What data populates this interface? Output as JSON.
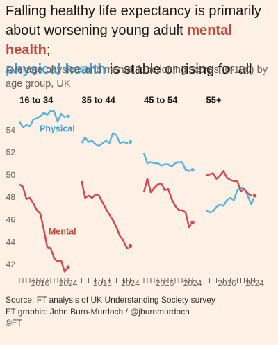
{
  "header": {
    "title": [
      "Falling healthy life expectancy is primarily about worsening young adult ",
      "mental health",
      "; ",
      "physical health",
      " is stable or rising for all"
    ],
    "subtitle": "Average physical and mental functioning scores (0-100) by age group, UK"
  },
  "chart_data": [
    {
      "type": "line",
      "title": "16 to 34",
      "x": [
        2010,
        2011,
        2012,
        2013,
        2014,
        2015,
        2016,
        2017,
        2018,
        2019,
        2020,
        2021,
        2022,
        2023,
        2024
      ],
      "series": [
        {
          "name": "Physical",
          "color": "#5ab4e0",
          "values": [
            54.8,
            54.3,
            54.5,
            54.4,
            55.0,
            55.1,
            55.3,
            55.6,
            55.4,
            55.8,
            55.7,
            54.8,
            55.5,
            55.2,
            55.3
          ]
        },
        {
          "name": "Mental",
          "color": "#d9484e",
          "values": [
            49.2,
            49.0,
            47.9,
            48.0,
            47.5,
            46.9,
            46.6,
            45.2,
            43.6,
            43.5,
            42.6,
            42.3,
            42.4,
            41.4,
            41.8
          ]
        }
      ],
      "xlim": [
        2010,
        2024
      ],
      "xticks": [
        2016,
        2024
      ],
      "xminorticks": [
        2010,
        2011,
        2012,
        2013,
        2014,
        2015,
        2016,
        2017,
        2018,
        2019,
        2020,
        2021,
        2022,
        2023,
        2024
      ],
      "ylim": [
        41,
        56
      ],
      "yticks": [
        42,
        44,
        46,
        48,
        50,
        52,
        54
      ]
    },
    {
      "type": "line",
      "title": "35 to 44",
      "x": [
        2010,
        2011,
        2012,
        2013,
        2014,
        2015,
        2016,
        2017,
        2018,
        2019,
        2020,
        2021,
        2022,
        2023,
        2024
      ],
      "series": [
        {
          "color": "#5ab4e0",
          "values": [
            52.9,
            53.4,
            53.0,
            53.1,
            52.8,
            52.6,
            52.9,
            53.1,
            52.9,
            53.8,
            53.6,
            52.9,
            53.0,
            52.9,
            53.0
          ]
        },
        {
          "color": "#d9484e",
          "values": [
            49.5,
            48.0,
            48.2,
            48.0,
            48.3,
            48.2,
            47.6,
            47.0,
            46.5,
            46.0,
            45.4,
            44.6,
            44.2,
            43.5,
            43.7
          ]
        }
      ],
      "xlim": [
        2010,
        2024
      ],
      "xticks": [
        2016,
        2024
      ],
      "xminorticks": [
        2010,
        2011,
        2012,
        2013,
        2014,
        2015,
        2016,
        2017,
        2018,
        2019,
        2020,
        2021,
        2022,
        2023,
        2024
      ],
      "ylim": [
        41,
        56
      ]
    },
    {
      "type": "line",
      "title": "45 to 54",
      "x": [
        2010,
        2011,
        2012,
        2013,
        2014,
        2015,
        2016,
        2017,
        2018,
        2019,
        2020,
        2021,
        2022,
        2023,
        2024
      ],
      "series": [
        {
          "color": "#5ab4e0",
          "values": [
            52.0,
            51.1,
            51.2,
            51.1,
            51.1,
            50.9,
            51.0,
            51.0,
            50.8,
            51.1,
            51.2,
            51.2,
            50.5,
            50.4,
            50.5
          ]
        },
        {
          "color": "#d9484e",
          "values": [
            48.5,
            49.7,
            48.5,
            48.9,
            49.2,
            49.3,
            48.7,
            48.8,
            47.9,
            47.3,
            46.9,
            46.9,
            46.7,
            45.4,
            45.8
          ]
        }
      ],
      "xlim": [
        2010,
        2024
      ],
      "xticks": [
        2016,
        2024
      ],
      "xminorticks": [
        2010,
        2011,
        2012,
        2013,
        2014,
        2015,
        2016,
        2017,
        2018,
        2019,
        2020,
        2021,
        2022,
        2023,
        2024
      ],
      "ylim": [
        41,
        56
      ]
    },
    {
      "type": "line",
      "title": "55+",
      "x": [
        2010,
        2011,
        2012,
        2013,
        2014,
        2015,
        2016,
        2017,
        2018,
        2019,
        2020,
        2021,
        2022,
        2023,
        2024
      ],
      "series": [
        {
          "color": "#5ab4e0",
          "values": [
            46.9,
            46.7,
            46.8,
            47.2,
            47.4,
            47.3,
            47.8,
            48.0,
            47.8,
            48.7,
            48.9,
            48.8,
            48.2,
            47.4,
            48.2
          ]
        },
        {
          "color": "#d9484e",
          "values": [
            50.0,
            50.1,
            50.2,
            49.7,
            50.0,
            50.4,
            49.8,
            49.6,
            49.5,
            49.5,
            48.6,
            48.8,
            48.4,
            48.2,
            48.2
          ]
        }
      ],
      "xlim": [
        2010,
        2024
      ],
      "xticks": [
        2016,
        2024
      ],
      "xminorticks": [
        2010,
        2011,
        2012,
        2013,
        2014,
        2015,
        2016,
        2017,
        2018,
        2019,
        2020,
        2021,
        2022,
        2023,
        2024
      ],
      "ylim": [
        41,
        56
      ]
    }
  ],
  "footer": {
    "source": "Source: FT analysis of UK Understanding Society survey",
    "credit": "FT graphic: John Burn-Murdoch / @jburnmurdoch",
    "copyright": "©FT"
  }
}
